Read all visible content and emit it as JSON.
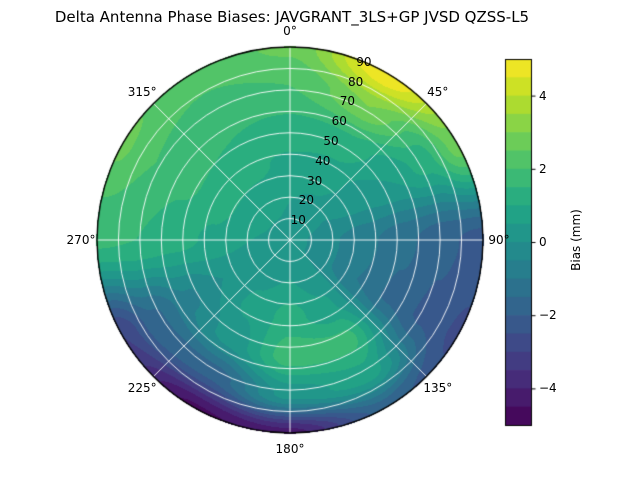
{
  "figure": {
    "background_color": "#ffffff",
    "outline_color": "#000000",
    "grid_color": "#ffffff"
  },
  "chart_data": {
    "type": "heatmap",
    "projection": "polar",
    "title": "Delta Antenna Phase Biases: JAVGRANT_3LS+GP JVSD QZSS-L5",
    "azimuth_tick_labels": [
      "0°",
      "45°",
      "90°",
      "135°",
      "180°",
      "225°",
      "270°",
      "315°"
    ],
    "azimuth_tick_degrees": [
      0,
      45,
      90,
      135,
      180,
      225,
      270,
      315
    ],
    "radial_tick_labels": [
      "10",
      "20",
      "30",
      "40",
      "50",
      "60",
      "70",
      "80",
      "90"
    ],
    "radial_tick_values": [
      10,
      20,
      30,
      40,
      50,
      60,
      70,
      80,
      90
    ],
    "radial_max": 90,
    "radial_label_angle_deg": 22.5,
    "grid_on": true,
    "levels": {
      "min": -5,
      "max": 5,
      "step": 0.5
    },
    "colorbar": {
      "label": "Bias (mm)",
      "tick_labels": [
        "4",
        "2",
        "0",
        "−2",
        "−4"
      ],
      "tick_values": [
        4,
        2,
        0,
        -2,
        -4
      ],
      "range": [
        -5,
        5
      ]
    },
    "colormap": {
      "name": "viridis",
      "stops": [
        "#440154",
        "#482475",
        "#414487",
        "#355f8d",
        "#2a788e",
        "#21918c",
        "#22a884",
        "#44bf70",
        "#7ad151",
        "#bddf26",
        "#fde725"
      ]
    },
    "grid": {
      "azimuth_deg": [
        0,
        30,
        60,
        90,
        120,
        150,
        180,
        210,
        240,
        270,
        300,
        330
      ],
      "radius_frac": [
        0.0,
        0.2,
        0.4,
        0.6,
        0.8,
        1.0
      ],
      "bias_mm": [
        [
          0.3,
          0.3,
          0.3,
          0.3,
          0.3,
          0.3,
          0.3,
          0.3,
          0.3,
          0.3,
          0.3,
          0.3
        ],
        [
          0.5,
          0.4,
          0.0,
          -0.4,
          -0.4,
          0.2,
          0.5,
          0.4,
          0.2,
          0.5,
          0.6,
          0.6
        ],
        [
          0.9,
          0.8,
          0.2,
          -0.9,
          -1.0,
          0.6,
          1.2,
          0.6,
          0.0,
          0.9,
          1.2,
          1.1
        ],
        [
          1.4,
          1.4,
          0.5,
          -1.4,
          -1.6,
          1.7,
          1.8,
          0.2,
          -0.6,
          1.2,
          1.6,
          1.5
        ],
        [
          2.0,
          3.0,
          1.2,
          -1.9,
          -2.1,
          0.8,
          0.2,
          -1.8,
          -1.6,
          1.5,
          2.0,
          1.9
        ],
        [
          2.6,
          5.0,
          2.8,
          -2.2,
          -2.6,
          -1.8,
          -4.2,
          -4.6,
          -3.0,
          1.6,
          2.6,
          2.2
        ]
      ]
    }
  }
}
